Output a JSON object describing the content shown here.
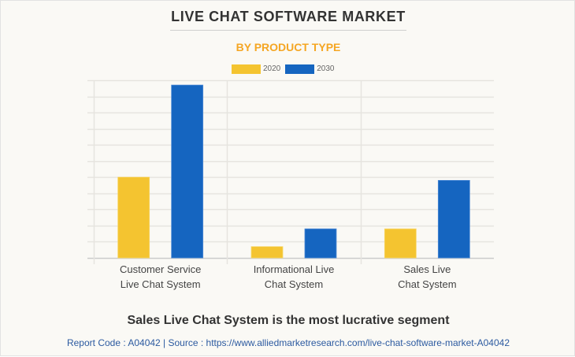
{
  "header": {
    "title": "LIVE CHAT SOFTWARE MARKET",
    "subtitle": "BY PRODUCT TYPE"
  },
  "footer": {
    "headline": "Sales Live Chat System is the most lucrative segment",
    "source": "Report Code : A04042  |  Source : https://www.alliedmarketresearch.com/live-chat-software-market-A04042"
  },
  "colors": {
    "series_2020": "#f4c430",
    "series_2030": "#1565c0",
    "subtitle": "#f5a623",
    "grid": "#e6e4df"
  },
  "chart_data": {
    "type": "bar",
    "title": "LIVE CHAT SOFTWARE MARKET",
    "subtitle": "BY PRODUCT TYPE",
    "xlabel": "",
    "ylabel": "",
    "categories": [
      [
        "Customer Service",
        "Live Chat System"
      ],
      [
        "Informational Live",
        "Chat System"
      ],
      [
        "Sales Live",
        "Chat System"
      ]
    ],
    "series": [
      {
        "name": "2020",
        "color": "#f4c430",
        "values": [
          5.0,
          0.7,
          1.8
        ]
      },
      {
        "name": "2030",
        "color": "#1565c0",
        "values": [
          10.7,
          1.8,
          4.8
        ]
      }
    ],
    "ylim": [
      0,
      11
    ],
    "y_gridlines": 11,
    "y_tick_labels_visible": false,
    "grid": true,
    "legend_position": "top-center"
  }
}
